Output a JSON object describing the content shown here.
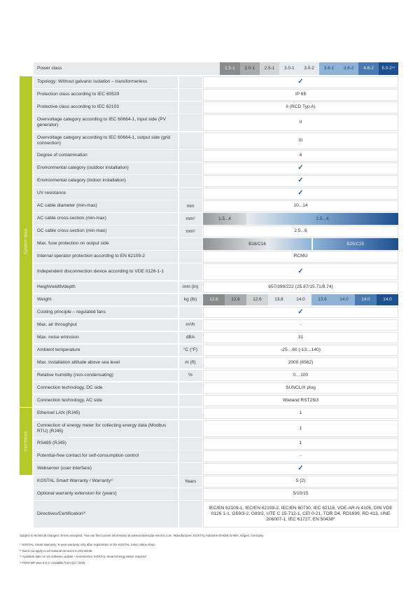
{
  "header": {
    "label": "Power class",
    "classes": [
      "1.5-1",
      "2.0-1",
      "2.5-1",
      "3.0-1",
      "3.0-2",
      "3.6-1",
      "3.6-2",
      "4.6-2",
      "5.0-2⁴⁾"
    ]
  },
  "class_colors": [
    "#8a8b8d",
    "#a9aaac",
    "#d3d4d6",
    "#e6e9ee",
    "#e6e9ee",
    "#8fb3d6",
    "#8fb3d6",
    "#4a7ab0",
    "#1e4f8f"
  ],
  "class_text_colors": [
    "#f0f0f0",
    "#333333",
    "#333333",
    "#333333",
    "#333333",
    "#1f3f66",
    "#1f3f66",
    "#e8eef6",
    "#e8eef6"
  ],
  "accent_green": "#b5c928",
  "groups": [
    {
      "label": "System data"
    },
    {
      "label": "Interfaces"
    }
  ],
  "rows": [
    {
      "label": "Topology: Without galvanic isolation – transformerless",
      "unit": "",
      "check": true
    },
    {
      "label": "Protection class according to IEC 60529",
      "unit": "",
      "value": "IP 65"
    },
    {
      "label": "Protective class according to IEC 62103",
      "unit": "",
      "value": "II (RCD Typ A)"
    },
    {
      "label": "Overvoltage category according to IEC 60664-1, input side (PV generator)",
      "unit": "",
      "value": "II",
      "tall": 1
    },
    {
      "label": "Overvoltage category according to IEC 60664-1, output side (grid connection)",
      "unit": "",
      "value": "III",
      "tall": 1
    },
    {
      "label": "Degree of contamination",
      "unit": "",
      "value": "4"
    },
    {
      "label": "Environmental category (outdoor installation)",
      "unit": "",
      "check": true
    },
    {
      "label": "Environmental category (indoor installation)",
      "unit": "",
      "check": true
    },
    {
      "label": "UV resistance",
      "unit": "",
      "check": true
    },
    {
      "label": "AC cable diameter (min-max)",
      "unit": "mm",
      "value": "10...14"
    },
    {
      "label": "AC cable cross-section (min-max)",
      "unit": "mm²",
      "bands": [
        "1.5...4",
        "2.5...4"
      ],
      "band_style": "ac"
    },
    {
      "label": "DC cable cross-section (min-max)",
      "unit": "mm²",
      "value": "2.5...6"
    },
    {
      "label": "Max. fuse protection on output side",
      "unit": "",
      "bands": [
        "B16/C16",
        "B25/C25"
      ],
      "band_style": "fuse"
    },
    {
      "label": "Internal operator protection according to EN 62109-2",
      "unit": "",
      "value": "RCMU"
    },
    {
      "label": "Independent disconnection device according to VDE 0126-1-1",
      "unit": "",
      "check": true,
      "tall": 1
    },
    {
      "label": "Height/width/depth",
      "unit": "mm (in)",
      "value": "657/399/222 (25.87/15.71/8.74)"
    },
    {
      "label": "Weight",
      "unit": "kg (lb)",
      "cells": [
        "12.6",
        "12.6",
        "12.6",
        "13.8",
        "14.0",
        "13.8",
        "14.0",
        "14.0",
        "14.0"
      ]
    },
    {
      "label": "Cooling principle – regulated fans",
      "unit": "",
      "check": true
    },
    {
      "label": "Max. air throughput",
      "unit": "m³/h",
      "value": "-"
    },
    {
      "label": "Max. noise emission",
      "unit": "dBA",
      "value": "31"
    },
    {
      "label": "Ambient temperature",
      "unit": "°C (°F)",
      "value": "-25…60 (-13…140)"
    },
    {
      "label": "Max. installation altitude above sea level",
      "unit": "m (ft)",
      "value": "2000 (6562)"
    },
    {
      "label": "Relative humidity (non-condensating)",
      "unit": "%",
      "value": "0…100"
    },
    {
      "label": "Connection technology, DC side",
      "unit": "",
      "value": "SUNCLIX plug"
    },
    {
      "label": "Connection technology, AC side",
      "unit": "",
      "value": "Wieland RST25i3"
    },
    {
      "label": "Ethernet LAN (RJ45)",
      "unit": "",
      "value": "1"
    },
    {
      "label": "Connection of energy meter for collecting energy data (Modbus RTU) (RJ45)",
      "unit": "",
      "value": "1",
      "tall": 1
    },
    {
      "label": "RS485 (RJ45)",
      "unit": "",
      "value": "1"
    },
    {
      "label": "Potential-free contact for self-consumption control",
      "unit": "",
      "value": "-"
    },
    {
      "label": "Webserver (user interface)",
      "unit": "",
      "check": true
    },
    {
      "label": "KOSTAL Smart Warranty / Warranty¹⁾",
      "unit": "Years",
      "value": "5 (2)"
    },
    {
      "label": "Optional warranty extension for (years)",
      "unit": "",
      "value": "5/10/15"
    },
    {
      "label": "Directives/Certification²⁾",
      "unit": "",
      "value": "IEC/EN 62109-1, IEC/EN 62109-2, IEC/EN 60730, IEC 62116, VDE-AR-N 4105, DIN VDE 0126 1-1, G59/3-2, G83/2, UTE C 15-712-1, CEI 0-21, TOR D4, RD1699, RD 413, UNE 206007-1, IEC 61727, EN 50438*",
      "tall": 2
    }
  ],
  "notes": {
    "main": "Subject to technical changes. Errors excepted. You can find current information at www.kostal-solar-electric.com. Manufacturer: KOSTAL Industrie Elektrik GmbH, Hagen, Germany",
    "footnotes": [
      "¹⁾ KOSTAL Smart Warranty: 5-year warranty only after registration in the KOSTAL Solar online shop",
      "²⁾ Does not apply to all national annexes to EN 50438",
      "³⁾ Available later on via software update - Accessories: KOSTAL Smart Energy Meter required",
      "⁴⁾ PIKO MP plus 5.0-2: Available from Q2 / 2020"
    ]
  }
}
